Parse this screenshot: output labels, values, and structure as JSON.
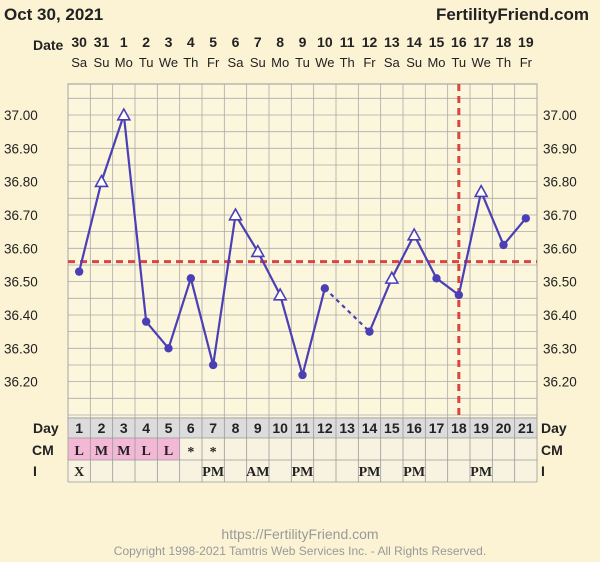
{
  "header": {
    "date": "Oct 30, 2021",
    "site": "FertilityFriend.com"
  },
  "footer": {
    "url": "https://FertilityFriend.com",
    "copyright": "Copyright 1998-2021 Tamtris Web Services Inc. - All Rights Reserved."
  },
  "colors": {
    "line": "#4b3fb5",
    "reference": "#d9453f",
    "menstruation": "#f3b8d6",
    "background": "#fbf3d4"
  },
  "chart_data": {
    "type": "line",
    "row_labels": {
      "date": "Date",
      "day": "Day",
      "cm": "CM",
      "i": "I"
    },
    "dates": [
      "30",
      "31",
      "1",
      "2",
      "3",
      "4",
      "5",
      "6",
      "7",
      "8",
      "9",
      "10",
      "11",
      "12",
      "13",
      "14",
      "15",
      "16",
      "17",
      "18",
      "19"
    ],
    "weekdays": [
      "Sa",
      "Su",
      "Mo",
      "Tu",
      "We",
      "Th",
      "Fr",
      "Sa",
      "Su",
      "Mo",
      "Tu",
      "We",
      "Th",
      "Fr",
      "Sa",
      "Su",
      "Mo",
      "Tu",
      "We",
      "Th",
      "Fr"
    ],
    "days": [
      "1",
      "2",
      "3",
      "4",
      "5",
      "6",
      "7",
      "8",
      "9",
      "10",
      "11",
      "12",
      "13",
      "14",
      "15",
      "16",
      "17",
      "18",
      "19",
      "20",
      "21"
    ],
    "temperatures": [
      36.53,
      36.8,
      37.0,
      36.38,
      36.3,
      36.51,
      36.25,
      36.7,
      36.59,
      36.46,
      36.22,
      36.48,
      null,
      36.35,
      36.51,
      36.64,
      36.51,
      36.46,
      36.77,
      36.61,
      36.69
    ],
    "markers": [
      "dot",
      "triangle",
      "triangle",
      "dot",
      "dot",
      "dot",
      "dot",
      "triangle",
      "triangle",
      "triangle",
      "dot",
      "dot",
      null,
      "dot",
      "triangle",
      "triangle",
      "dot",
      "dot",
      "triangle",
      "dot",
      "dot"
    ],
    "dashed_segment_days": [
      12,
      14
    ],
    "yticks": [
      "37.00",
      "36.90",
      "36.80",
      "36.70",
      "36.60",
      "36.50",
      "36.40",
      "36.30",
      "36.20"
    ],
    "ylim": [
      36.1,
      37.1
    ],
    "coverline": 36.56,
    "ovulation_day": 18,
    "cm": [
      "L",
      "M",
      "M",
      "L",
      "L",
      "*",
      "*",
      "",
      "",
      "",
      "",
      "",
      "",
      "",
      "",
      "",
      "",
      "",
      "",
      "",
      ""
    ],
    "intercourse": [
      "X",
      "",
      "",
      "",
      "",
      "",
      "PM",
      "",
      "AM",
      "",
      "PM",
      "",
      "",
      "PM",
      "",
      "PM",
      "",
      "",
      "PM",
      "",
      ""
    ],
    "grid": true
  }
}
